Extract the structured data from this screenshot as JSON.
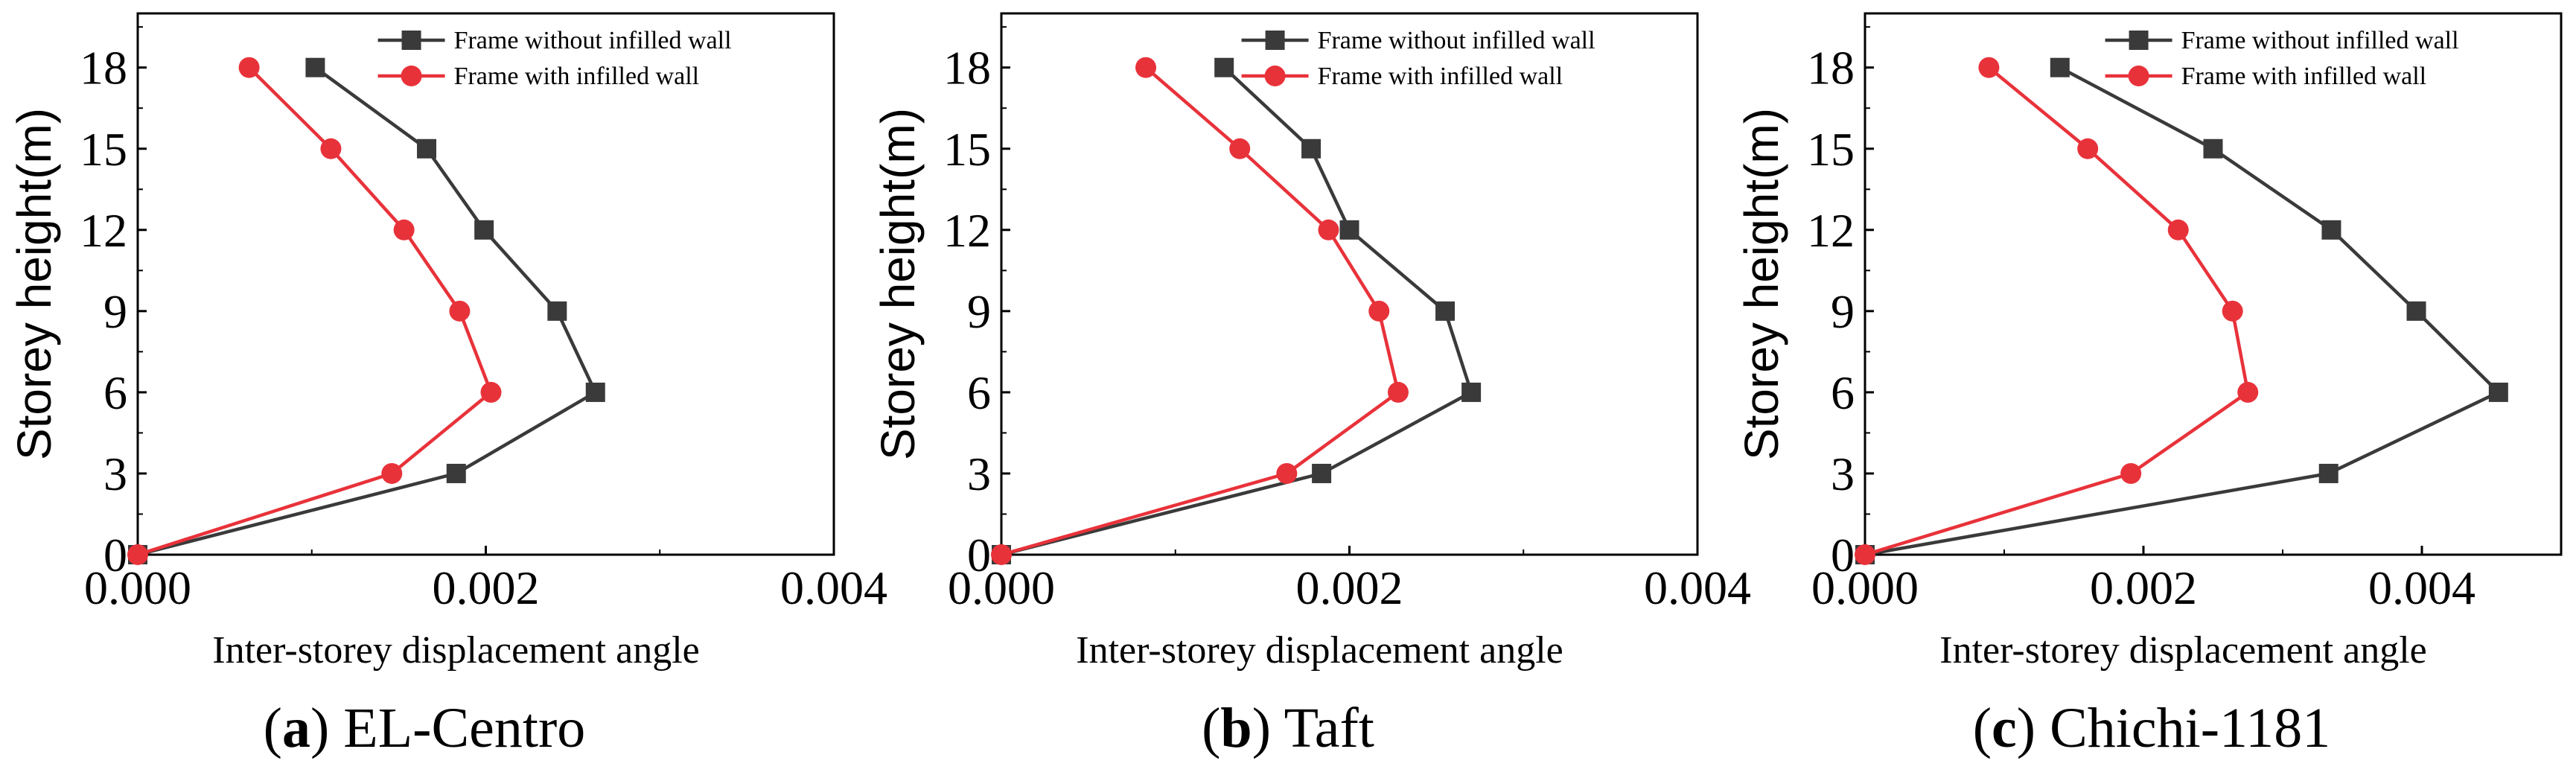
{
  "chart_data": [
    {
      "type": "line",
      "caption_letter": "a",
      "caption_text": "EL-Centro",
      "xlabel": "Inter-storey displacement angle",
      "ylabel": "Storey height(m)",
      "xlim": [
        0,
        0.004
      ],
      "ylim": [
        0,
        20
      ],
      "xticks": [
        "0.000",
        "0.002",
        "0.004"
      ],
      "xtick_values": [
        0,
        0.002,
        0.004
      ],
      "yticks": [
        "0",
        "3",
        "6",
        "9",
        "12",
        "15",
        "18"
      ],
      "ytick_values": [
        0,
        3,
        6,
        9,
        12,
        15,
        18
      ],
      "legend_position": "top-right",
      "series": [
        {
          "name": "Frame without infilled wall",
          "color": "#3a3a3a",
          "marker": "square",
          "x": [
            0,
            0.00183,
            0.00263,
            0.00241,
            0.00199,
            0.00166,
            0.00102
          ],
          "y": [
            0,
            3,
            6,
            9,
            12,
            15,
            18
          ]
        },
        {
          "name": "Frame with infilled wall",
          "color": "#e8323a",
          "marker": "circle",
          "x": [
            0,
            0.00146,
            0.00203,
            0.00185,
            0.00153,
            0.00111,
            0.00064
          ],
          "y": [
            0,
            3,
            6,
            9,
            12,
            15,
            18
          ]
        }
      ]
    },
    {
      "type": "line",
      "caption_letter": "b",
      "caption_text": "Taft",
      "xlabel": "Inter-storey displacement angle",
      "ylabel": "Storey height(m)",
      "xlim": [
        0,
        0.004
      ],
      "ylim": [
        0,
        20
      ],
      "xticks": [
        "0.000",
        "0.002",
        "0.004"
      ],
      "xtick_values": [
        0,
        0.002,
        0.004
      ],
      "yticks": [
        "0",
        "3",
        "6",
        "9",
        "12",
        "15",
        "18"
      ],
      "ytick_values": [
        0,
        3,
        6,
        9,
        12,
        15,
        18
      ],
      "legend_position": "top-right",
      "series": [
        {
          "name": "Frame without infilled wall",
          "color": "#3a3a3a",
          "marker": "square",
          "x": [
            0,
            0.00184,
            0.0027,
            0.00255,
            0.002,
            0.00178,
            0.00128
          ],
          "y": [
            0,
            3,
            6,
            9,
            12,
            15,
            18
          ]
        },
        {
          "name": "Frame with infilled wall",
          "color": "#e8323a",
          "marker": "circle",
          "x": [
            0,
            0.00164,
            0.00228,
            0.00217,
            0.00188,
            0.00137,
            0.00083
          ],
          "y": [
            0,
            3,
            6,
            9,
            12,
            15,
            18
          ]
        }
      ]
    },
    {
      "type": "line",
      "caption_letter": "c",
      "caption_text": "Chichi-1181",
      "xlabel": "Inter-storey displacement angle",
      "ylabel": "Storey height(m)",
      "xlim": [
        0,
        0.005
      ],
      "ylim": [
        0,
        20
      ],
      "xticks": [
        "0.000",
        "0.002",
        "0.004"
      ],
      "xtick_values": [
        0,
        0.002,
        0.004
      ],
      "yticks": [
        "0",
        "3",
        "6",
        "9",
        "12",
        "15",
        "18"
      ],
      "ytick_values": [
        0,
        3,
        6,
        9,
        12,
        15,
        18
      ],
      "legend_position": "top-right",
      "series": [
        {
          "name": "Frame without infilled wall",
          "color": "#3a3a3a",
          "marker": "square",
          "x": [
            0,
            0.00333,
            0.00455,
            0.00396,
            0.00335,
            0.0025,
            0.0014
          ],
          "y": [
            0,
            3,
            6,
            9,
            12,
            15,
            18
          ]
        },
        {
          "name": "Frame with infilled wall",
          "color": "#e8323a",
          "marker": "circle",
          "x": [
            0,
            0.00191,
            0.00275,
            0.00264,
            0.00225,
            0.0016,
            0.00089
          ],
          "y": [
            0,
            3,
            6,
            9,
            12,
            15,
            18
          ]
        }
      ]
    }
  ]
}
